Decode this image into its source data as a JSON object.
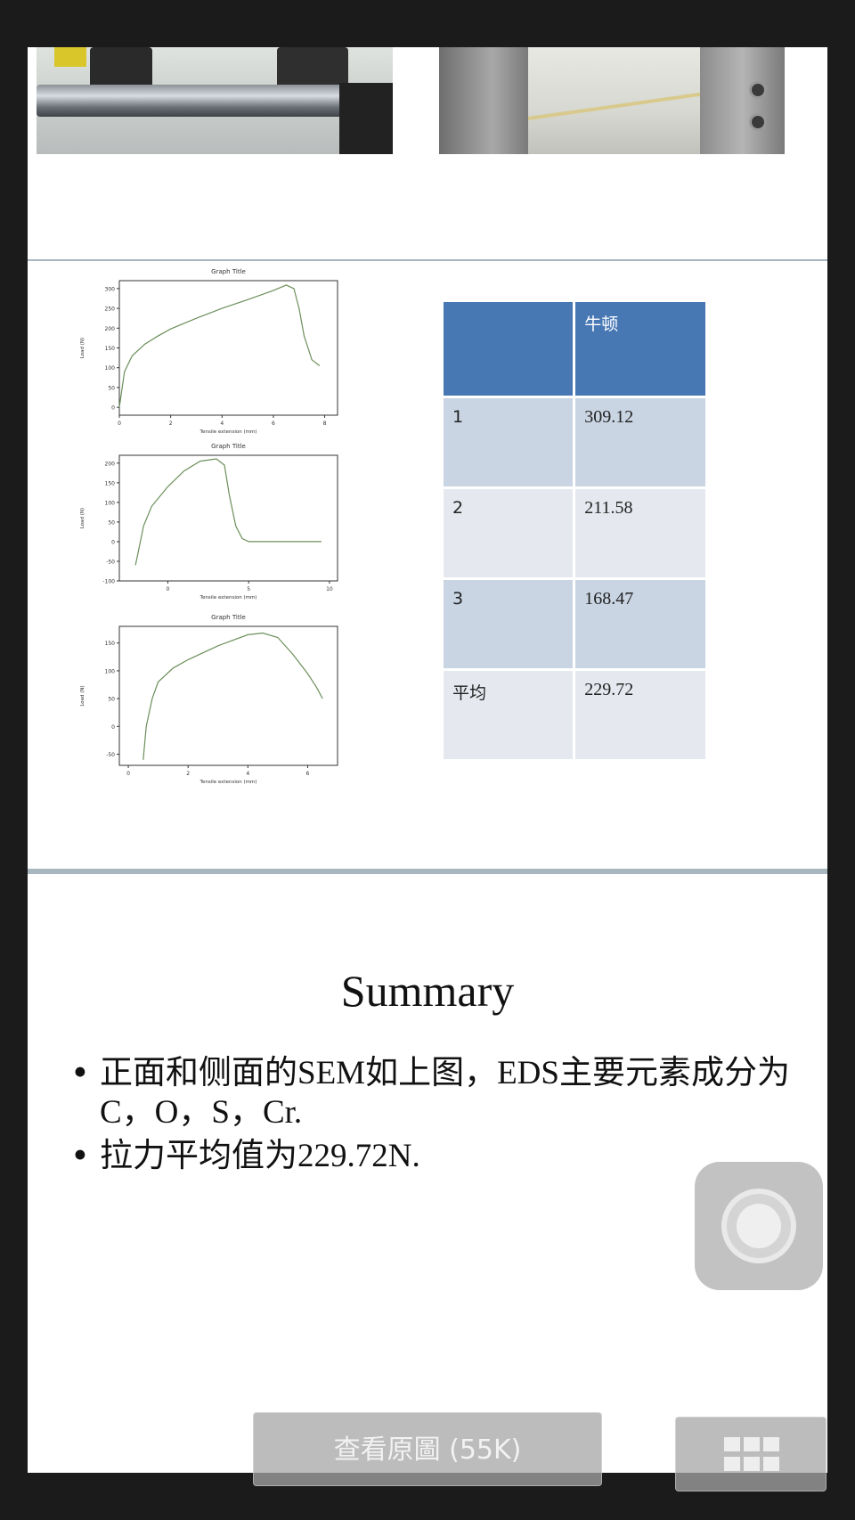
{
  "slide_graphs": [
    {
      "title": "Graph Title",
      "xlabel": "Tensile extension (mm)",
      "ylabel": "Load (N)",
      "xticks": [
        "0",
        "2",
        "4",
        "6",
        "8"
      ],
      "yticks": [
        "300",
        "250",
        "200",
        "150",
        "100",
        "50",
        "0"
      ],
      "chart_data": {
        "type": "line",
        "title": "Graph Title",
        "xlabel": "Tensile extension (mm)",
        "ylabel": "Load (N)",
        "xlim": [
          0,
          8.5
        ],
        "ylim": [
          -20,
          320
        ],
        "x": [
          0,
          0.2,
          0.5,
          1,
          1.5,
          2,
          3,
          4,
          5,
          6,
          6.5,
          6.8,
          7.0,
          7.2,
          7.5,
          7.8
        ],
        "y": [
          0,
          90,
          130,
          160,
          180,
          198,
          225,
          250,
          272,
          295,
          309,
          300,
          250,
          180,
          120,
          105
        ]
      }
    },
    {
      "title": "Graph Title",
      "xlabel": "Tensile extension (mm)",
      "ylabel": "Load (N)",
      "xticks": [
        "0",
        "5",
        "10"
      ],
      "yticks": [
        "200",
        "150",
        "100",
        "50",
        "0",
        "-50",
        "-100"
      ],
      "chart_data": {
        "type": "line",
        "title": "Graph Title",
        "xlabel": "Tensile extension (mm)",
        "ylabel": "Load (N)",
        "xlim": [
          -3,
          10.5
        ],
        "ylim": [
          -100,
          220
        ],
        "x": [
          -2,
          -1.8,
          -1.5,
          -1,
          0,
          1,
          2,
          3,
          3.5,
          3.8,
          4.2,
          4.6,
          5,
          6,
          7,
          8,
          9.5
        ],
        "y": [
          -60,
          -20,
          40,
          90,
          140,
          180,
          205,
          211,
          195,
          120,
          40,
          8,
          0,
          0,
          0,
          0,
          0
        ]
      }
    },
    {
      "title": "Graph Title",
      "xlabel": "Tensile extension (mm)",
      "ylabel": "Load (N)",
      "xticks": [
        "0",
        "2",
        "4",
        "6"
      ],
      "yticks": [
        "150",
        "100",
        "50",
        "0",
        "-50"
      ],
      "chart_data": {
        "type": "line",
        "title": "Graph Title",
        "xlabel": "Tensile extension (mm)",
        "ylabel": "Load (N)",
        "xlim": [
          -0.3,
          7
        ],
        "ylim": [
          -70,
          180
        ],
        "x": [
          0.5,
          0.6,
          0.8,
          1,
          1.5,
          2,
          3,
          4,
          4.5,
          5,
          5.5,
          6,
          6.3,
          6.5
        ],
        "y": [
          -60,
          0,
          50,
          80,
          105,
          120,
          145,
          165,
          168,
          160,
          130,
          95,
          70,
          50
        ]
      }
    }
  ],
  "force_table": {
    "headers": [
      "",
      "牛顿"
    ],
    "rows": [
      [
        "1",
        "309.12"
      ],
      [
        "2",
        "211.58"
      ],
      [
        "3",
        "168.47"
      ],
      [
        "平均",
        "229.72"
      ]
    ]
  },
  "summary": {
    "title": "Summary",
    "bullets": [
      "正面和侧面的SEM如上图，EDS主要元素成分为C，O，S，Cr.",
      "拉力平均值为229.72N."
    ]
  },
  "toolbar": {
    "view_original_label": "查看原圖 (55K)",
    "grid_icon": "grid-icon"
  },
  "colors": {
    "table_header": "#4778b4",
    "table_odd": "#c9d5e3",
    "table_even": "#e5e9ef",
    "slide_separator": "#a7b6bf",
    "background": "#1b1b1b"
  }
}
